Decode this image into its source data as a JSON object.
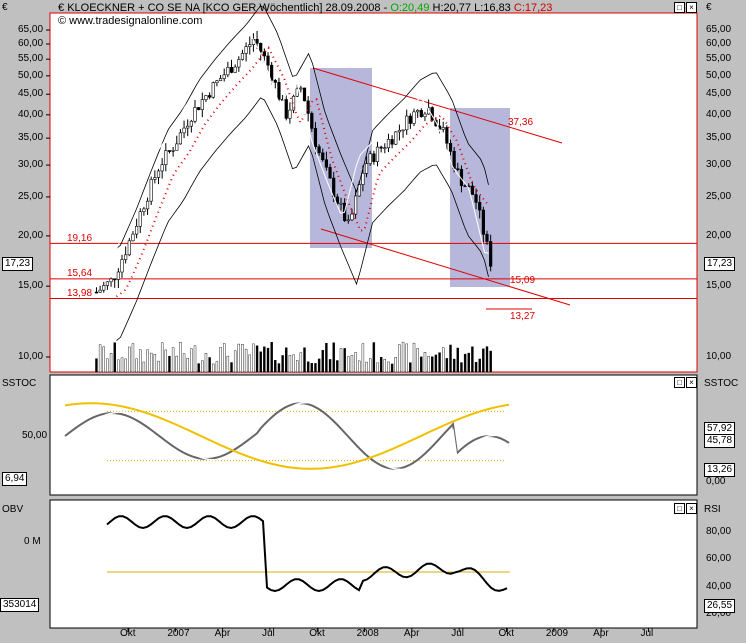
{
  "header": {
    "currency": "€",
    "title": "KLOECKNER + CO SE NA [KCO GER  Wöchentlich] 28.09.2008 -",
    "open": "O:20,49",
    "hlc": "H:20,77 L:16,83",
    "close": "C:17,23",
    "credit": "© www.tradesignalonline.com"
  },
  "colors": {
    "background": "#ffffff",
    "frame": "#c0c0c0",
    "support_lines": "#e00000",
    "channel_lines": "#e00000",
    "highlight_box": "#9999cc",
    "sar": "#e00000",
    "slow_stoch_signal": "#f0c000",
    "obv": "#000000",
    "rsi": "#ffffff"
  },
  "price_panel": {
    "y_ticks": [
      "65,00",
      "60,00",
      "55,00",
      "50,00",
      "45,00",
      "40,00",
      "35,00",
      "30,00",
      "25,00",
      "20,00",
      "15,00",
      "10,00"
    ],
    "current_price": "17,23",
    "levels": [
      {
        "value": 19.16,
        "label": "19,16"
      },
      {
        "value": 15.64,
        "label": "15,64"
      },
      {
        "value": 13.98,
        "label": "13,98"
      }
    ],
    "annotations": [
      {
        "label": "37,36"
      },
      {
        "label": "15,09"
      },
      {
        "label": "13,27"
      }
    ]
  },
  "sstoc_panel": {
    "name": "SSTOC",
    "y_ticks": [
      "50,00",
      "0,00"
    ],
    "left_value": "6,94",
    "right_values": [
      "57,92",
      "45,78",
      "13,26"
    ]
  },
  "obv_panel": {
    "name": "OBV",
    "left_ticks": [
      "0 M"
    ],
    "left_value": "353014",
    "rsi_name": "RSI",
    "rsi_ticks": [
      "80,00",
      "60,00",
      "40,00",
      "20,00"
    ],
    "rsi_value": "26,55"
  },
  "x_axis": {
    "labels": [
      "Okt",
      "2007",
      "Apr",
      "Jul",
      "Okt",
      "2008",
      "Apr",
      "Jul",
      "Okt",
      "2009",
      "Apr",
      "Jul"
    ]
  },
  "chart_data": {
    "type": "candlestick",
    "title": "KLOECKNER + CO SE NA [KCO GER  Wöchentlich] 28.09.2008",
    "scale": "log",
    "ylim": [
      9,
      75
    ],
    "x_range": [
      "2006-07",
      "2009-08"
    ],
    "ohlc_last": {
      "open": 20.49,
      "high": 20.77,
      "low": 16.83,
      "close": 17.23
    },
    "price_path": [
      [
        "2006-08",
        14.5
      ],
      [
        "2006-09",
        15.5
      ],
      [
        "2006-10",
        19
      ],
      [
        "2006-11",
        24
      ],
      [
        "2006-12",
        30
      ],
      [
        "2007-01",
        34
      ],
      [
        "2007-02",
        40
      ],
      [
        "2007-03",
        45
      ],
      [
        "2007-04",
        50
      ],
      [
        "2007-05",
        55
      ],
      [
        "2007-06",
        62
      ],
      [
        "2007-07",
        52
      ],
      [
        "2007-08",
        40
      ],
      [
        "2007-09",
        47
      ],
      [
        "2007-10",
        33
      ],
      [
        "2007-11",
        26
      ],
      [
        "2007-12",
        21
      ],
      [
        "2008-01",
        30
      ],
      [
        "2008-02",
        33
      ],
      [
        "2008-03",
        36
      ],
      [
        "2008-04",
        40
      ],
      [
        "2008-05",
        42
      ],
      [
        "2008-06",
        36
      ],
      [
        "2008-07",
        28
      ],
      [
        "2008-08",
        25
      ],
      [
        "2008-09",
        17.23
      ]
    ],
    "horizontal_levels": [
      19.16,
      15.64,
      13.98
    ],
    "trend_channel_labels": [
      37.36,
      15.09,
      13.27
    ]
  }
}
